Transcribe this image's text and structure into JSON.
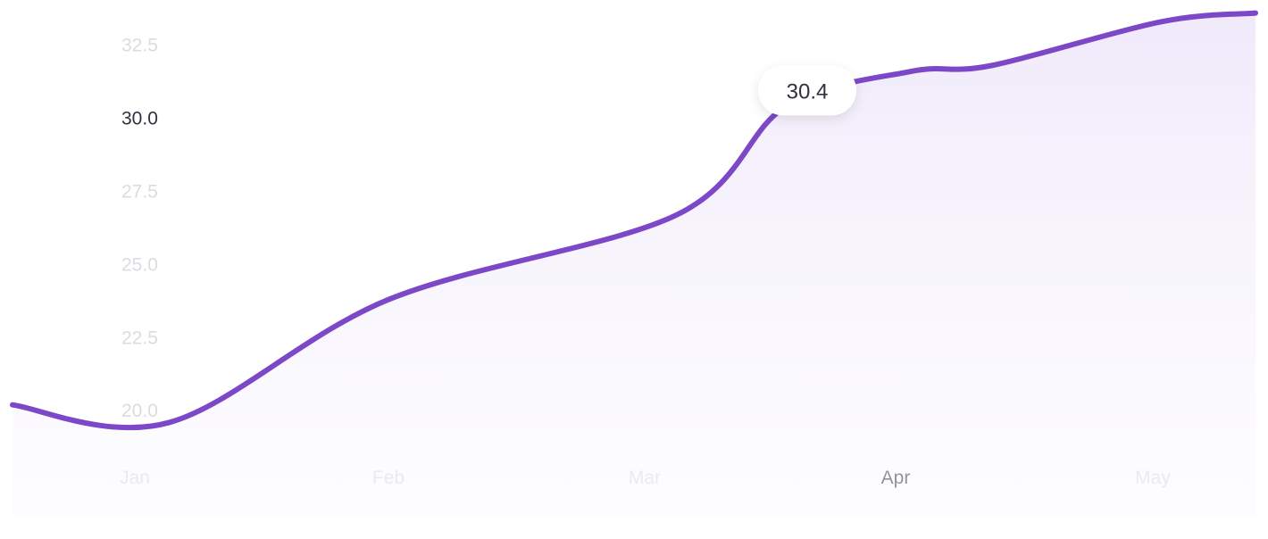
{
  "chart_data": {
    "type": "area",
    "x": [
      "Jan",
      "Jan",
      "Feb",
      "Mar",
      "Mar",
      "Apr",
      "Apr",
      "May",
      "May"
    ],
    "categories": [
      "Jan",
      "Feb",
      "Mar",
      "Apr",
      "May"
    ],
    "series": [
      {
        "values": [
          20.2,
          19.6,
          23.8,
          26.7,
          30.4,
          31.6,
          31.8,
          33.3,
          33.6
        ]
      }
    ],
    "y_ticks": [
      "20.0",
      "22.5",
      "25.0",
      "27.5",
      "30.0",
      "32.5"
    ],
    "x_ticks": [
      "Jan",
      "Feb",
      "Mar",
      "Apr",
      "May"
    ],
    "active_y_tick": "30.0",
    "active_x_tick": "Apr",
    "tooltip": {
      "label": "30.4",
      "value": 30.4
    },
    "ylim": [
      19.0,
      33.8
    ],
    "grid": false,
    "legend": "none",
    "colors": {
      "line": "#7c48c7",
      "area": "#efe8fa",
      "tick": "#dcdbe1",
      "active_tick": "#2f3140",
      "tooltip_bg": "#ffffff"
    }
  }
}
